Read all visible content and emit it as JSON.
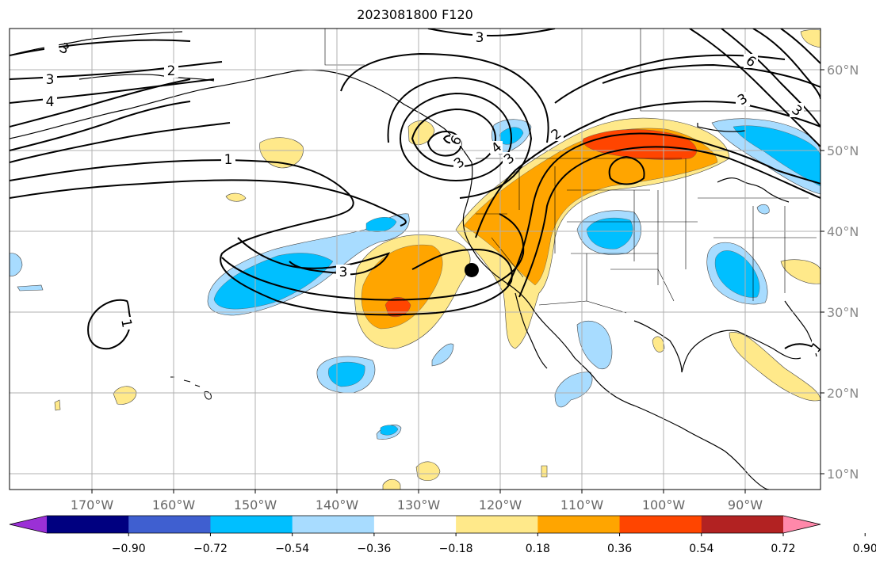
{
  "title": "2023081800 F120",
  "lon_ticks": [
    {
      "lon": -170,
      "label": "170°W"
    },
    {
      "lon": -160,
      "label": "160°W"
    },
    {
      "lon": -150,
      "label": "150°W"
    },
    {
      "lon": -140,
      "label": "140°W"
    },
    {
      "lon": -130,
      "label": "130°W"
    },
    {
      "lon": -120,
      "label": "120°W"
    },
    {
      "lon": -110,
      "label": "110°W"
    },
    {
      "lon": -100,
      "label": "100°W"
    },
    {
      "lon": -90,
      "label": "90°W"
    }
  ],
  "lat_ticks": [
    {
      "lat": 60,
      "label": "60°N"
    },
    {
      "lat": 50,
      "label": "50°N"
    },
    {
      "lat": 40,
      "label": "40°N"
    },
    {
      "lat": 30,
      "label": "30°N"
    },
    {
      "lat": 20,
      "label": "20°N"
    },
    {
      "lat": 10,
      "label": "10°N"
    }
  ],
  "colorbar": {
    "colors": [
      "#9b30d6",
      "#000080",
      "#3f5fd0",
      "#00bfff",
      "#a8dcff",
      "#ffffff",
      "#ffe98a",
      "#ffa500",
      "#ff4500",
      "#b22222",
      "#ff88aa"
    ],
    "ticks": [
      "−0.90",
      "−0.72",
      "−0.54",
      "−0.36",
      "−0.18",
      "0.18",
      "0.36",
      "0.54",
      "0.72",
      "0.90"
    ]
  },
  "contour_labels": [
    "3",
    "2",
    "3",
    "4",
    "1",
    "3",
    "1",
    "2",
    "3",
    "6",
    "3"
  ],
  "marker": {
    "lon": -123.5,
    "lat": 35.2
  }
}
